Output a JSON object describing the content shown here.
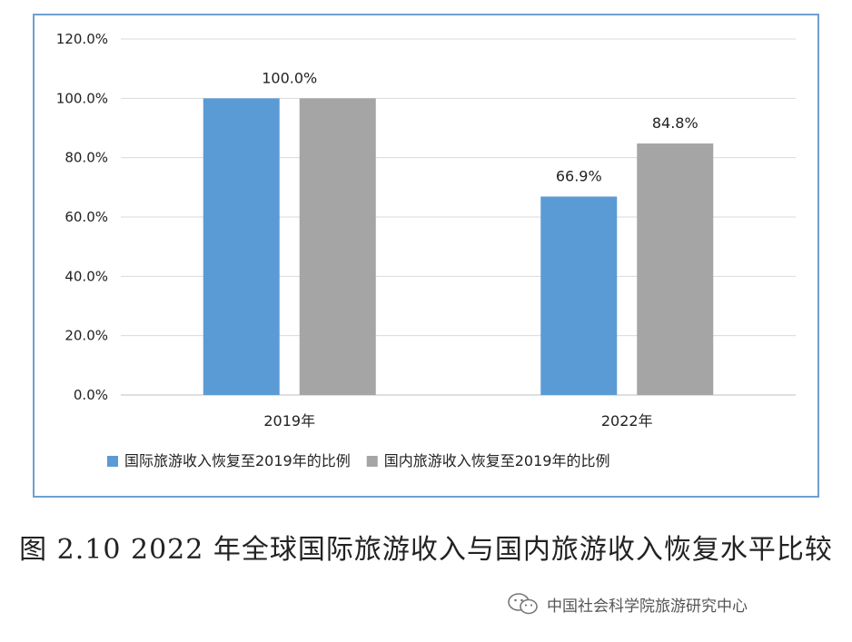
{
  "chart_data": {
    "type": "bar",
    "categories": [
      "2019年",
      "2022年"
    ],
    "series": [
      {
        "name": "国际旅游收入恢复至2019年的比例",
        "values": [
          100.0,
          66.9
        ],
        "labels": [
          "",
          "66.9%"
        ],
        "color": "#5b9bd5"
      },
      {
        "name": "国内旅游收入恢复至2019年的比例",
        "values": [
          100.0,
          84.8
        ],
        "labels": [
          "",
          "84.8%"
        ],
        "color": "#a5a5a5"
      }
    ],
    "group_labels": [
      "100.0%",
      ""
    ],
    "ylim": [
      0,
      120
    ],
    "yticks": [
      0,
      20,
      40,
      60,
      80,
      100,
      120
    ],
    "ytick_labels": [
      "0.0%",
      "20.0%",
      "40.0%",
      "60.0%",
      "80.0%",
      "100.0%",
      "120.0%"
    ],
    "grid": true,
    "legend_position": "bottom",
    "title": "",
    "xlabel": "",
    "ylabel": ""
  },
  "caption": "图 2.10 2022 年全球国际旅游收入与国内旅游收入恢复水平比较",
  "watermark": {
    "icon": "wechat-icon",
    "text": "中国社会科学院旅游研究中心"
  }
}
